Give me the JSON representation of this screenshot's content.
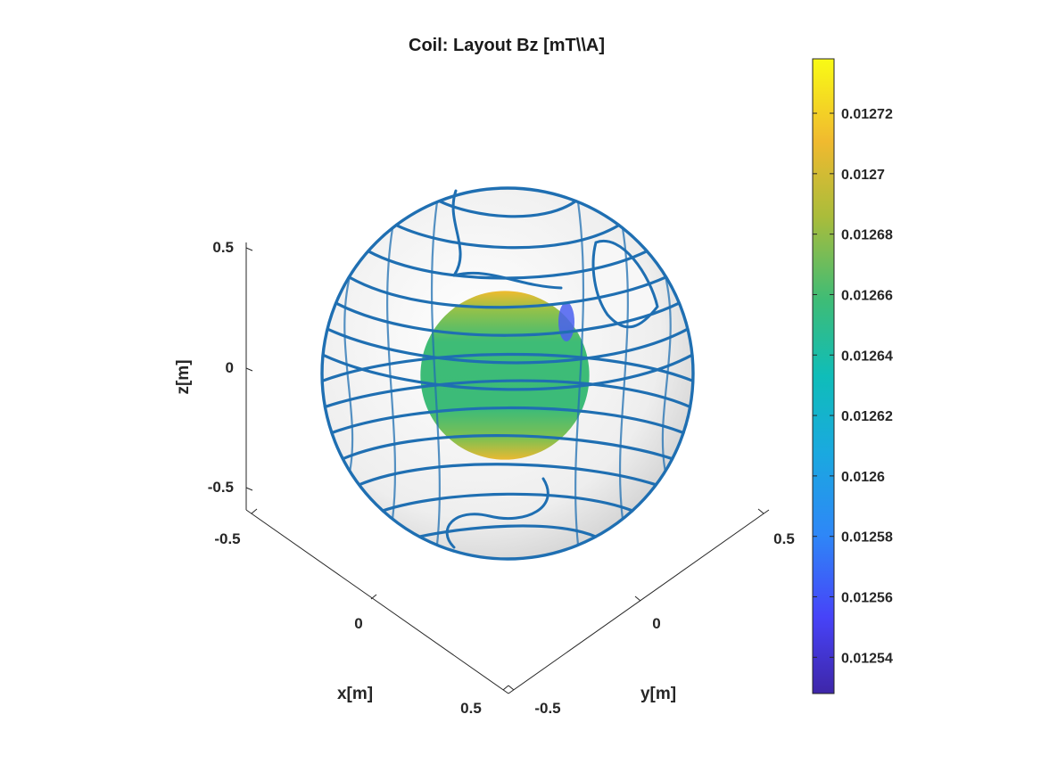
{
  "chart_data": {
    "type": "surface3d",
    "title": "Coil: Layout Bz [mT\\\\A]",
    "xlabel": "x[m]",
    "ylabel": "y[m]",
    "zlabel": "z[m]",
    "xlim": [
      -0.5,
      0.5
    ],
    "ylim": [
      -0.5,
      0.5
    ],
    "zlim": [
      -0.5,
      0.5
    ],
    "x_ticks": [
      "-0.5",
      "0",
      "0.5"
    ],
    "y_ticks": [
      "-0.5",
      "0",
      "0.5"
    ],
    "z_ticks": [
      "0.5",
      "0",
      "-0.5"
    ],
    "coil_sphere_radius": 0.5,
    "target_sphere_radius": 0.25,
    "coil_wire_color": "#1f6fb2",
    "colorbar": {
      "colormap": "parula",
      "range": [
        0.012528,
        0.012738
      ],
      "ticks": [
        "0.01272",
        "0.0127",
        "0.01268",
        "0.01266",
        "0.01264",
        "0.01262",
        "0.0126",
        "0.01258",
        "0.01256",
        "0.01254"
      ],
      "tick_values": [
        0.01272,
        0.0127,
        0.01268,
        0.01266,
        0.01264,
        0.01262,
        0.0126,
        0.01258,
        0.01256,
        0.01254
      ]
    },
    "field_samples": {
      "cap_top": 0.0127,
      "center": 0.01265,
      "cap_bottom": 0.01268,
      "edge_spot": 0.01256
    },
    "legend": "colorbar-right",
    "grid": false
  }
}
